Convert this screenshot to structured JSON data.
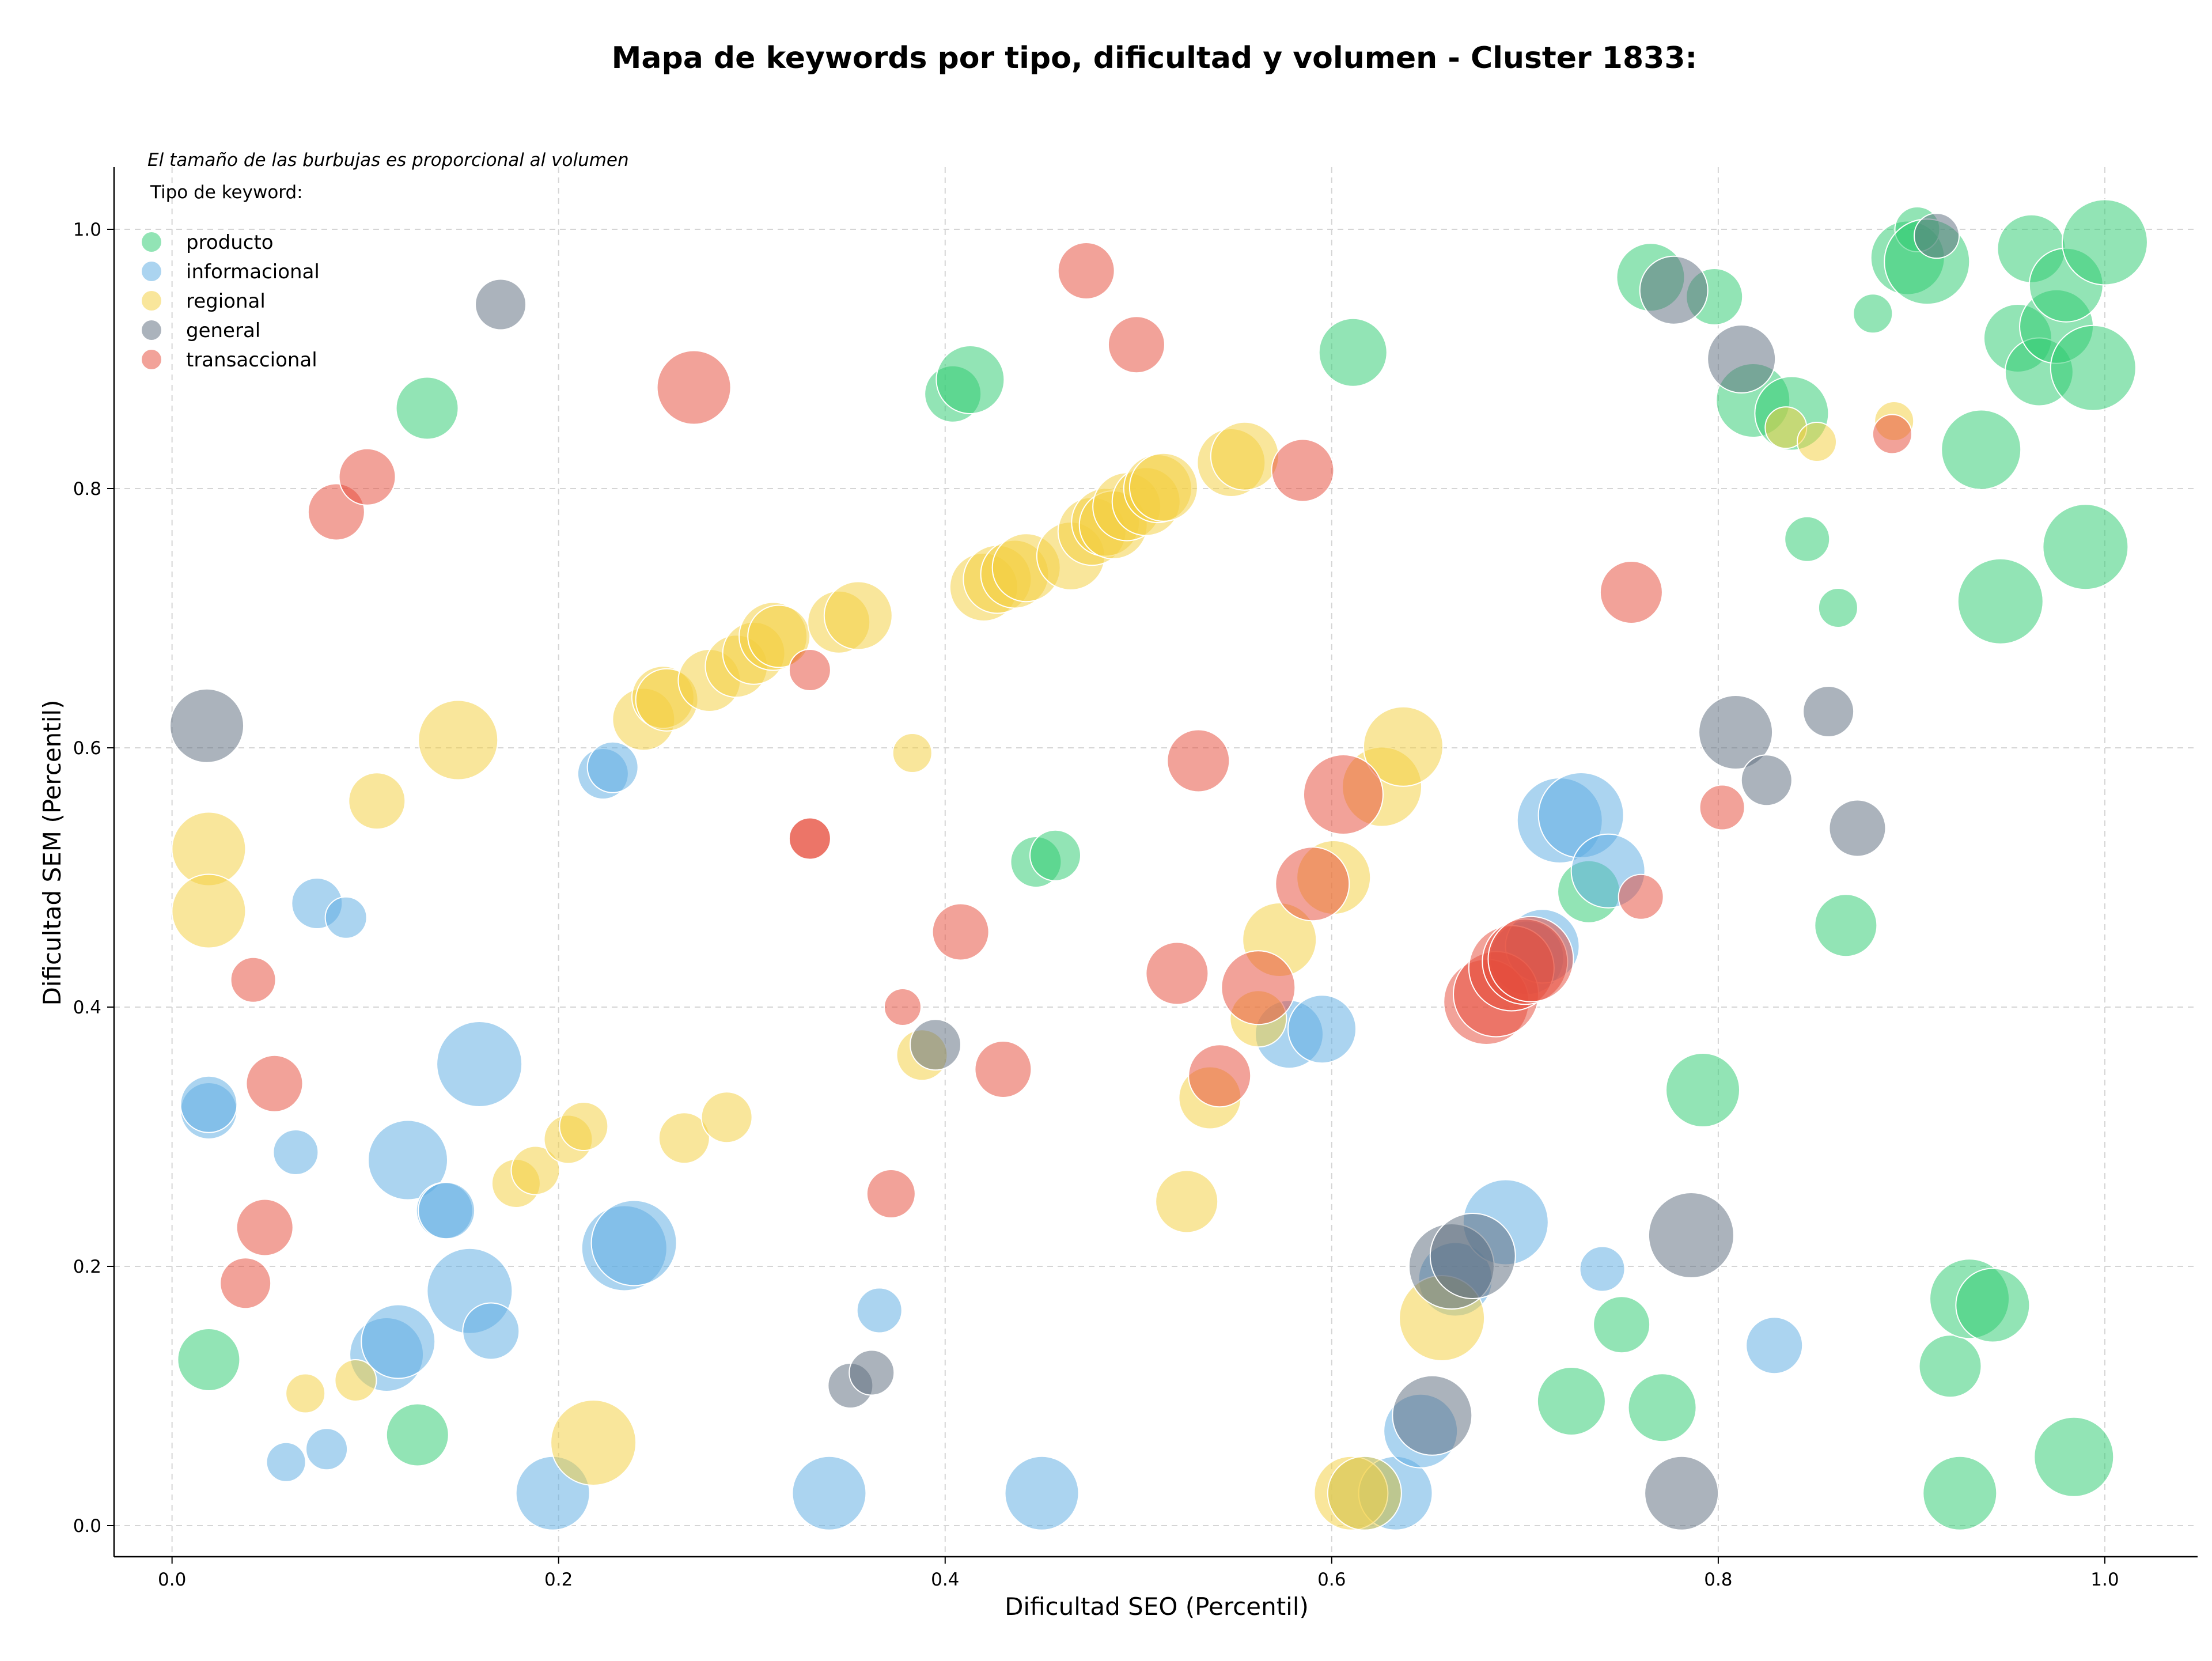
{
  "chart_data": {
    "type": "scatter",
    "title": "Mapa de keywords por tipo, dificultad y volumen - Cluster 1833:",
    "xlabel": "Dificultad SEO (Percentil)",
    "ylabel": "Dificultad SEM (Percentil)",
    "xlim": [
      -0.03,
      1.048
    ],
    "ylim": [
      -0.024,
      1.048
    ],
    "xticks": [
      0.0,
      0.2,
      0.4,
      0.6,
      0.8,
      1.0
    ],
    "yticks": [
      0.0,
      0.2,
      0.4,
      0.6,
      0.8,
      1.0
    ],
    "xtick_labels": [
      "0.0",
      "0.2",
      "0.4",
      "0.6",
      "0.8",
      "1.0"
    ],
    "ytick_labels": [
      "0.0",
      "0.2",
      "0.4",
      "0.6",
      "0.8",
      "1.0"
    ],
    "grid": true,
    "size_note": "El tamaño de las burbujas es proporcional al volumen",
    "legend_title": "Tipo de keyword:",
    "legend_position": "top-left",
    "series": [
      {
        "name": "producto",
        "color": "#2ecc71",
        "points": [
          [
            0.019,
            0.128,
            3
          ],
          [
            0.127,
            0.07,
            3
          ],
          [
            0.132,
            0.862,
            3
          ],
          [
            0.404,
            0.873,
            2.5
          ],
          [
            0.413,
            0.884,
            3.5
          ],
          [
            0.447,
            0.512,
            2
          ],
          [
            0.457,
            0.517,
            2
          ],
          [
            0.611,
            0.905,
            3.5
          ],
          [
            0.724,
            0.096,
            3.5
          ],
          [
            0.733,
            0.489,
            3
          ],
          [
            0.75,
            0.155,
            2.5
          ],
          [
            0.765,
            0.963,
            3.5
          ],
          [
            0.771,
            0.091,
            3.5
          ],
          [
            0.792,
            0.336,
            4
          ],
          [
            0.798,
            0.948,
            2.5
          ],
          [
            0.818,
            0.868,
            4
          ],
          [
            0.838,
            0.858,
            4
          ],
          [
            0.846,
            0.761,
            1.5
          ],
          [
            0.862,
            0.708,
            1
          ],
          [
            0.866,
            0.463,
            3
          ],
          [
            0.88,
            0.935,
            1
          ],
          [
            0.898,
            0.978,
            4
          ],
          [
            0.903,
            1.0,
            1.5
          ],
          [
            0.908,
            0.975,
            5
          ],
          [
            0.92,
            0.123,
            3
          ],
          [
            0.925,
            0.025,
            4
          ],
          [
            0.93,
            0.175,
            4.5
          ],
          [
            0.936,
            0.83,
            4.5
          ],
          [
            0.942,
            0.17,
            4
          ],
          [
            0.946,
            0.713,
            5
          ],
          [
            0.955,
            0.916,
            3.5
          ],
          [
            0.962,
            0.985,
            3.5
          ],
          [
            0.966,
            0.89,
            3.5
          ],
          [
            0.975,
            0.925,
            4
          ],
          [
            0.98,
            0.957,
            4
          ],
          [
            0.984,
            0.053,
            4.5
          ],
          [
            0.99,
            0.755,
            5
          ],
          [
            0.994,
            0.893,
            5
          ],
          [
            1.0,
            0.99,
            5
          ]
        ]
      },
      {
        "name": "informacional",
        "color": "#5dade2",
        "points": [
          [
            0.019,
            0.32,
            2.5
          ],
          [
            0.019,
            0.325,
            2.5
          ],
          [
            0.059,
            0.049,
            1
          ],
          [
            0.064,
            0.288,
            1.5
          ],
          [
            0.075,
            0.48,
            2
          ],
          [
            0.08,
            0.059,
            1.2
          ],
          [
            0.09,
            0.469,
            1.2
          ],
          [
            0.111,
            0.132,
            4
          ],
          [
            0.117,
            0.142,
            4
          ],
          [
            0.122,
            0.282,
            4.5
          ],
          [
            0.141,
            0.243,
            2.5
          ],
          [
            0.142,
            0.243,
            2.5
          ],
          [
            0.159,
            0.356,
            5
          ],
          [
            0.154,
            0.181,
            5
          ],
          [
            0.165,
            0.15,
            2.5
          ],
          [
            0.197,
            0.025,
            4
          ],
          [
            0.223,
            0.58,
            2
          ],
          [
            0.228,
            0.585,
            2
          ],
          [
            0.234,
            0.214,
            5
          ],
          [
            0.239,
            0.218,
            5
          ],
          [
            0.34,
            0.025,
            4
          ],
          [
            0.366,
            0.166,
            1.5
          ],
          [
            0.45,
            0.025,
            4
          ],
          [
            0.578,
            0.379,
            3.5
          ],
          [
            0.595,
            0.383,
            3.5
          ],
          [
            0.617,
            0.025,
            4
          ],
          [
            0.633,
            0.025,
            4
          ],
          [
            0.646,
            0.073,
            4
          ],
          [
            0.664,
            0.19,
            4
          ],
          [
            0.69,
            0.234,
            5
          ],
          [
            0.701,
            0.438,
            4
          ],
          [
            0.709,
            0.447,
            4
          ],
          [
            0.718,
            0.544,
            5
          ],
          [
            0.729,
            0.548,
            5
          ],
          [
            0.74,
            0.198,
            1.5
          ],
          [
            0.743,
            0.505,
            4
          ],
          [
            0.829,
            0.139,
            2.5
          ]
        ]
      },
      {
        "name": "regional",
        "color": "#f4d03f",
        "points": [
          [
            0.019,
            0.522,
            4
          ],
          [
            0.019,
            0.474,
            4
          ],
          [
            0.069,
            0.102,
            1
          ],
          [
            0.095,
            0.112,
            1.2
          ],
          [
            0.106,
            0.559,
            2.5
          ],
          [
            0.148,
            0.606,
            4.5
          ],
          [
            0.178,
            0.264,
            1.8
          ],
          [
            0.188,
            0.274,
            1.8
          ],
          [
            0.205,
            0.298,
            1.8
          ],
          [
            0.213,
            0.308,
            1.8
          ],
          [
            0.218,
            0.064,
            5
          ],
          [
            0.244,
            0.622,
            3
          ],
          [
            0.254,
            0.639,
            3
          ],
          [
            0.256,
            0.637,
            3
          ],
          [
            0.265,
            0.299,
            2
          ],
          [
            0.278,
            0.652,
            3
          ],
          [
            0.287,
            0.315,
            2
          ],
          [
            0.292,
            0.663,
            3
          ],
          [
            0.301,
            0.673,
            3
          ],
          [
            0.311,
            0.686,
            3.5
          ],
          [
            0.314,
            0.686,
            3
          ],
          [
            0.345,
            0.697,
            3
          ],
          [
            0.355,
            0.702,
            3.5
          ],
          [
            0.383,
            0.596,
            1
          ],
          [
            0.388,
            0.363,
            2
          ],
          [
            0.42,
            0.724,
            3.5
          ],
          [
            0.427,
            0.73,
            3.5
          ],
          [
            0.436,
            0.734,
            3.5
          ],
          [
            0.442,
            0.739,
            3.5
          ],
          [
            0.465,
            0.748,
            3.5
          ],
          [
            0.476,
            0.767,
            3.5
          ],
          [
            0.483,
            0.774,
            3.5
          ],
          [
            0.487,
            0.772,
            3.5
          ],
          [
            0.494,
            0.786,
            3.5
          ],
          [
            0.504,
            0.79,
            3.5
          ],
          [
            0.51,
            0.8,
            3.5
          ],
          [
            0.513,
            0.801,
            3.5
          ],
          [
            0.525,
            0.25,
            3
          ],
          [
            0.537,
            0.33,
            3
          ],
          [
            0.548,
            0.82,
            3.5
          ],
          [
            0.555,
            0.825,
            3.5
          ],
          [
            0.562,
            0.391,
            2.5
          ],
          [
            0.573,
            0.452,
            4
          ],
          [
            0.601,
            0.5,
            4
          ],
          [
            0.61,
            0.025,
            4
          ],
          [
            0.617,
            0.025,
            4
          ],
          [
            0.626,
            0.57,
            4.5
          ],
          [
            0.637,
            0.601,
            4.5
          ],
          [
            0.657,
            0.16,
            5
          ],
          [
            0.835,
            0.847,
            1.2
          ],
          [
            0.851,
            0.836,
            1
          ],
          [
            0.891,
            0.852,
            1
          ]
        ]
      },
      {
        "name": "general",
        "color": "#5d6d7e",
        "points": [
          [
            0.018,
            0.617,
            4
          ],
          [
            0.17,
            0.942,
            2
          ],
          [
            0.351,
            0.108,
            1.5
          ],
          [
            0.362,
            0.118,
            1.5
          ],
          [
            0.395,
            0.371,
            2
          ],
          [
            0.652,
            0.085,
            4.5
          ],
          [
            0.662,
            0.2,
            5
          ],
          [
            0.673,
            0.208,
            5
          ],
          [
            0.777,
            0.953,
            3.5
          ],
          [
            0.781,
            0.025,
            4
          ],
          [
            0.786,
            0.224,
            5
          ],
          [
            0.809,
            0.612,
            4
          ],
          [
            0.812,
            0.9,
            3.5
          ],
          [
            0.825,
            0.575,
            2
          ],
          [
            0.857,
            0.628,
            2
          ],
          [
            0.872,
            0.538,
            2.5
          ],
          [
            0.913,
            0.995,
            1.5
          ]
        ]
      },
      {
        "name": "transaccional",
        "color": "#e74c3c",
        "points": [
          [
            0.038,
            0.187,
            2
          ],
          [
            0.042,
            0.421,
            1.5
          ],
          [
            0.048,
            0.23,
            2.5
          ],
          [
            0.053,
            0.341,
            2.5
          ],
          [
            0.085,
            0.782,
            2.5
          ],
          [
            0.101,
            0.809,
            2.5
          ],
          [
            0.27,
            0.878,
            4
          ],
          [
            0.33,
            0.53,
            1.2
          ],
          [
            0.33,
            0.53,
            1.2
          ],
          [
            0.33,
            0.66,
            1.2
          ],
          [
            0.372,
            0.256,
            1.8
          ],
          [
            0.378,
            0.4,
            0.8
          ],
          [
            0.408,
            0.458,
            2.5
          ],
          [
            0.43,
            0.352,
            2.5
          ],
          [
            0.473,
            0.968,
            2.5
          ],
          [
            0.499,
            0.911,
            2.5
          ],
          [
            0.52,
            0.426,
            3
          ],
          [
            0.531,
            0.59,
            3
          ],
          [
            0.542,
            0.347,
            3
          ],
          [
            0.562,
            0.415,
            4
          ],
          [
            0.585,
            0.814,
            3
          ],
          [
            0.59,
            0.495,
            4
          ],
          [
            0.606,
            0.564,
            4.5
          ],
          [
            0.68,
            0.404,
            5
          ],
          [
            0.685,
            0.41,
            5
          ],
          [
            0.693,
            0.43,
            5
          ],
          [
            0.7,
            0.435,
            5
          ],
          [
            0.703,
            0.437,
            5
          ],
          [
            0.755,
            0.72,
            3
          ],
          [
            0.76,
            0.485,
            1.5
          ],
          [
            0.802,
            0.554,
            1.5
          ],
          [
            0.89,
            0.842,
            1
          ]
        ]
      }
    ]
  }
}
